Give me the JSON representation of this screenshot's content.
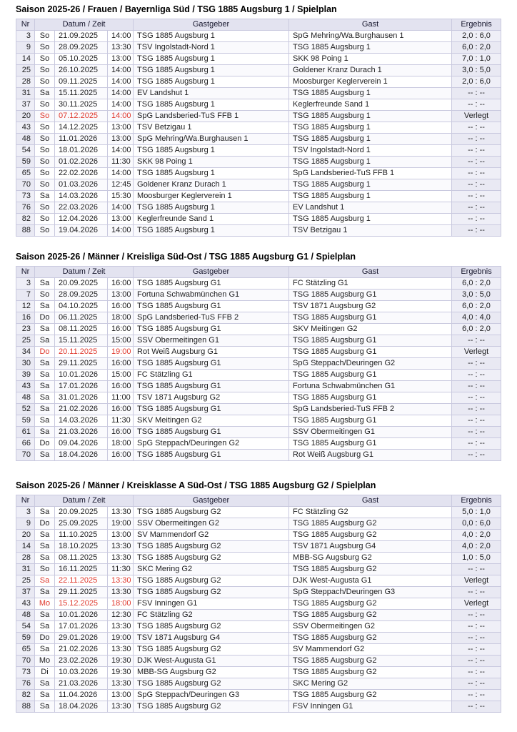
{
  "colors": {
    "header_bg": "#e3e3f0",
    "border": "#c9c9df",
    "accent_column_bg": "#efeff7",
    "text": "#1d1d1f",
    "postponed_red": "#e0392e"
  },
  "columns": {
    "nr": "Nr",
    "datum_zeit": "Datum / Zeit",
    "gastgeber": "Gastgeber",
    "gast": "Gast",
    "ergebnis": "Ergebnis"
  },
  "tables": [
    {
      "title": "Saison 2025-26 / Frauen / Bayernliga Süd / TSG 1885 Augsburg 1 / Spielplan",
      "rows": [
        {
          "nr": "3",
          "day": "So",
          "date": "21.09.2025",
          "time": "14:00",
          "home": "TSG 1885 Augsburg 1",
          "guest": "SpG Mehring/Wa.Burghausen 1",
          "result": "2,0 : 6,0",
          "highlight": false
        },
        {
          "nr": "9",
          "day": "So",
          "date": "28.09.2025",
          "time": "13:30",
          "home": "TSV Ingolstadt-Nord 1",
          "guest": "TSG 1885 Augsburg 1",
          "result": "6,0 : 2,0",
          "highlight": false
        },
        {
          "nr": "14",
          "day": "So",
          "date": "05.10.2025",
          "time": "13:00",
          "home": "TSG 1885 Augsburg 1",
          "guest": "SKK 98 Poing 1",
          "result": "7,0 : 1,0",
          "highlight": false
        },
        {
          "nr": "25",
          "day": "So",
          "date": "26.10.2025",
          "time": "14:00",
          "home": "TSG 1885 Augsburg 1",
          "guest": "Goldener Kranz Durach 1",
          "result": "3,0 : 5,0",
          "highlight": false
        },
        {
          "nr": "28",
          "day": "So",
          "date": "09.11.2025",
          "time": "14:00",
          "home": "TSG 1885 Augsburg 1",
          "guest": "Moosburger Keglerverein 1",
          "result": "2,0 : 6,0",
          "highlight": false
        },
        {
          "nr": "31",
          "day": "Sa",
          "date": "15.11.2025",
          "time": "14:00",
          "home": "EV Landshut 1",
          "guest": "TSG 1885 Augsburg 1",
          "result": "-- : --",
          "highlight": false
        },
        {
          "nr": "37",
          "day": "So",
          "date": "30.11.2025",
          "time": "14:00",
          "home": "TSG 1885 Augsburg 1",
          "guest": "Keglerfreunde Sand 1",
          "result": "-- : --",
          "highlight": false
        },
        {
          "nr": "20",
          "day": "So",
          "date": "07.12.2025",
          "time": "14:00",
          "home": "SpG Landsberied-TuS FFB 1",
          "guest": "TSG 1885 Augsburg 1",
          "result": "Verlegt",
          "highlight": true
        },
        {
          "nr": "43",
          "day": "So",
          "date": "14.12.2025",
          "time": "13:00",
          "home": "TSV Betzigau 1",
          "guest": "TSG 1885 Augsburg 1",
          "result": "-- : --",
          "highlight": false
        },
        {
          "nr": "48",
          "day": "So",
          "date": "11.01.2026",
          "time": "13:00",
          "home": "SpG Mehring/Wa.Burghausen 1",
          "guest": "TSG 1885 Augsburg 1",
          "result": "-- : --",
          "highlight": false
        },
        {
          "nr": "54",
          "day": "So",
          "date": "18.01.2026",
          "time": "14:00",
          "home": "TSG 1885 Augsburg 1",
          "guest": "TSV Ingolstadt-Nord 1",
          "result": "-- : --",
          "highlight": false
        },
        {
          "nr": "59",
          "day": "So",
          "date": "01.02.2026",
          "time": "11:30",
          "home": "SKK 98 Poing 1",
          "guest": "TSG 1885 Augsburg 1",
          "result": "-- : --",
          "highlight": false
        },
        {
          "nr": "65",
          "day": "So",
          "date": "22.02.2026",
          "time": "14:00",
          "home": "TSG 1885 Augsburg 1",
          "guest": "SpG Landsberied-TuS FFB 1",
          "result": "-- : --",
          "highlight": false
        },
        {
          "nr": "70",
          "day": "So",
          "date": "01.03.2026",
          "time": "12:45",
          "home": "Goldener Kranz Durach 1",
          "guest": "TSG 1885 Augsburg 1",
          "result": "-- : --",
          "highlight": false
        },
        {
          "nr": "73",
          "day": "Sa",
          "date": "14.03.2026",
          "time": "15:30",
          "home": "Moosburger Keglerverein 1",
          "guest": "TSG 1885 Augsburg 1",
          "result": "-- : --",
          "highlight": false
        },
        {
          "nr": "76",
          "day": "So",
          "date": "22.03.2026",
          "time": "14:00",
          "home": "TSG 1885 Augsburg 1",
          "guest": "EV Landshut 1",
          "result": "-- : --",
          "highlight": false
        },
        {
          "nr": "82",
          "day": "So",
          "date": "12.04.2026",
          "time": "13:00",
          "home": "Keglerfreunde Sand 1",
          "guest": "TSG 1885 Augsburg 1",
          "result": "-- : --",
          "highlight": false
        },
        {
          "nr": "88",
          "day": "So",
          "date": "19.04.2026",
          "time": "14:00",
          "home": "TSG 1885 Augsburg 1",
          "guest": "TSV Betzigau 1",
          "result": "-- : --",
          "highlight": false
        }
      ]
    },
    {
      "title": "Saison 2025-26 / Männer / Kreisliga Süd-Ost / TSG 1885 Augsburg G1 / Spielplan",
      "rows": [
        {
          "nr": "3",
          "day": "Sa",
          "date": "20.09.2025",
          "time": "16:00",
          "home": "TSG 1885 Augsburg G1",
          "guest": "FC Stätzling G1",
          "result": "6,0 : 2,0",
          "highlight": false
        },
        {
          "nr": "7",
          "day": "So",
          "date": "28.09.2025",
          "time": "13:00",
          "home": "Fortuna Schwabmünchen G1",
          "guest": "TSG 1885 Augsburg G1",
          "result": "3,0 : 5,0",
          "highlight": false
        },
        {
          "nr": "12",
          "day": "Sa",
          "date": "04.10.2025",
          "time": "16:00",
          "home": "TSG 1885 Augsburg G1",
          "guest": "TSV 1871 Augsburg G2",
          "result": "6,0 : 2,0",
          "highlight": false
        },
        {
          "nr": "16",
          "day": "Do",
          "date": "06.11.2025",
          "time": "18:00",
          "home": "SpG Landsberied-TuS FFB 2",
          "guest": "TSG 1885 Augsburg G1",
          "result": "4,0 : 4,0",
          "highlight": false
        },
        {
          "nr": "23",
          "day": "Sa",
          "date": "08.11.2025",
          "time": "16:00",
          "home": "TSG 1885 Augsburg G1",
          "guest": "SKV Meitingen G2",
          "result": "6,0 : 2,0",
          "highlight": false
        },
        {
          "nr": "25",
          "day": "Sa",
          "date": "15.11.2025",
          "time": "15:00",
          "home": "SSV Obermeitingen G1",
          "guest": "TSG 1885 Augsburg G1",
          "result": "-- : --",
          "highlight": false
        },
        {
          "nr": "34",
          "day": "Do",
          "date": "20.11.2025",
          "time": "19:00",
          "home": "Rot Weiß Augsburg G1",
          "guest": "TSG 1885 Augsburg G1",
          "result": "Verlegt",
          "highlight": true
        },
        {
          "nr": "30",
          "day": "Sa",
          "date": "29.11.2025",
          "time": "16:00",
          "home": "TSG 1885 Augsburg G1",
          "guest": "SpG Steppach/Deuringen G2",
          "result": "-- : --",
          "highlight": false
        },
        {
          "nr": "39",
          "day": "Sa",
          "date": "10.01.2026",
          "time": "15:00",
          "home": "FC Stätzling G1",
          "guest": "TSG 1885 Augsburg G1",
          "result": "-- : --",
          "highlight": false
        },
        {
          "nr": "43",
          "day": "Sa",
          "date": "17.01.2026",
          "time": "16:00",
          "home": "TSG 1885 Augsburg G1",
          "guest": "Fortuna Schwabmünchen G1",
          "result": "-- : --",
          "highlight": false
        },
        {
          "nr": "48",
          "day": "Sa",
          "date": "31.01.2026",
          "time": "11:00",
          "home": "TSV 1871 Augsburg G2",
          "guest": "TSG 1885 Augsburg G1",
          "result": "-- : --",
          "highlight": false
        },
        {
          "nr": "52",
          "day": "Sa",
          "date": "21.02.2026",
          "time": "16:00",
          "home": "TSG 1885 Augsburg G1",
          "guest": "SpG Landsberied-TuS FFB 2",
          "result": "-- : --",
          "highlight": false
        },
        {
          "nr": "59",
          "day": "Sa",
          "date": "14.03.2026",
          "time": "11:30",
          "home": "SKV Meitingen G2",
          "guest": "TSG 1885 Augsburg G1",
          "result": "-- : --",
          "highlight": false
        },
        {
          "nr": "61",
          "day": "Sa",
          "date": "21.03.2026",
          "time": "16:00",
          "home": "TSG 1885 Augsburg G1",
          "guest": "SSV Obermeitingen G1",
          "result": "-- : --",
          "highlight": false
        },
        {
          "nr": "66",
          "day": "Do",
          "date": "09.04.2026",
          "time": "18:00",
          "home": "SpG Steppach/Deuringen G2",
          "guest": "TSG 1885 Augsburg G1",
          "result": "-- : --",
          "highlight": false
        },
        {
          "nr": "70",
          "day": "Sa",
          "date": "18.04.2026",
          "time": "16:00",
          "home": "TSG 1885 Augsburg G1",
          "guest": "Rot Weiß Augsburg G1",
          "result": "-- : --",
          "highlight": false
        }
      ]
    },
    {
      "title": "Saison 2025-26 / Männer / Kreisklasse A Süd-Ost / TSG 1885 Augsburg G2 / Spielplan",
      "rows": [
        {
          "nr": "3",
          "day": "Sa",
          "date": "20.09.2025",
          "time": "13:30",
          "home": "TSG 1885 Augsburg G2",
          "guest": "FC Stätzling G2",
          "result": "5,0 : 1,0",
          "highlight": false
        },
        {
          "nr": "9",
          "day": "Do",
          "date": "25.09.2025",
          "time": "19:00",
          "home": "SSV Obermeitingen G2",
          "guest": "TSG 1885 Augsburg G2",
          "result": "0,0 : 6,0",
          "highlight": false
        },
        {
          "nr": "20",
          "day": "Sa",
          "date": "11.10.2025",
          "time": "13:00",
          "home": "SV Mammendorf G2",
          "guest": "TSG 1885 Augsburg G2",
          "result": "4,0 : 2,0",
          "highlight": false
        },
        {
          "nr": "14",
          "day": "Sa",
          "date": "18.10.2025",
          "time": "13:30",
          "home": "TSG 1885 Augsburg G2",
          "guest": "TSV 1871 Augsburg G4",
          "result": "4,0 : 2,0",
          "highlight": false
        },
        {
          "nr": "28",
          "day": "Sa",
          "date": "08.11.2025",
          "time": "13:30",
          "home": "TSG 1885 Augsburg G2",
          "guest": "MBB-SG Augsburg G2",
          "result": "1,0 : 5,0",
          "highlight": false
        },
        {
          "nr": "31",
          "day": "So",
          "date": "16.11.2025",
          "time": "11:30",
          "home": "SKC Mering G2",
          "guest": "TSG 1885 Augsburg G2",
          "result": "-- : --",
          "highlight": false
        },
        {
          "nr": "25",
          "day": "Sa",
          "date": "22.11.2025",
          "time": "13:30",
          "home": "TSG 1885 Augsburg G2",
          "guest": "DJK West-Augusta G1",
          "result": "Verlegt",
          "highlight": true
        },
        {
          "nr": "37",
          "day": "Sa",
          "date": "29.11.2025",
          "time": "13:30",
          "home": "TSG 1885 Augsburg G2",
          "guest": "SpG Steppach/Deuringen G3",
          "result": "-- : --",
          "highlight": false
        },
        {
          "nr": "43",
          "day": "Mo",
          "date": "15.12.2025",
          "time": "18:00",
          "home": "FSV Inningen G1",
          "guest": "TSG 1885 Augsburg G2",
          "result": "Verlegt",
          "highlight": true
        },
        {
          "nr": "48",
          "day": "Sa",
          "date": "10.01.2026",
          "time": "12:30",
          "home": "FC Stätzling G2",
          "guest": "TSG 1885 Augsburg G2",
          "result": "-- : --",
          "highlight": false
        },
        {
          "nr": "54",
          "day": "Sa",
          "date": "17.01.2026",
          "time": "13:30",
          "home": "TSG 1885 Augsburg G2",
          "guest": "SSV Obermeitingen G2",
          "result": "-- : --",
          "highlight": false
        },
        {
          "nr": "59",
          "day": "Do",
          "date": "29.01.2026",
          "time": "19:00",
          "home": "TSV 1871 Augsburg G4",
          "guest": "TSG 1885 Augsburg G2",
          "result": "-- : --",
          "highlight": false
        },
        {
          "nr": "65",
          "day": "Sa",
          "date": "21.02.2026",
          "time": "13:30",
          "home": "TSG 1885 Augsburg G2",
          "guest": "SV Mammendorf G2",
          "result": "-- : --",
          "highlight": false
        },
        {
          "nr": "70",
          "day": "Mo",
          "date": "23.02.2026",
          "time": "19:30",
          "home": "DJK West-Augusta G1",
          "guest": "TSG 1885 Augsburg G2",
          "result": "-- : --",
          "highlight": false
        },
        {
          "nr": "73",
          "day": "Di",
          "date": "10.03.2026",
          "time": "19:30",
          "home": "MBB-SG Augsburg G2",
          "guest": "TSG 1885 Augsburg G2",
          "result": "-- : --",
          "highlight": false
        },
        {
          "nr": "76",
          "day": "Sa",
          "date": "21.03.2026",
          "time": "13:30",
          "home": "TSG 1885 Augsburg G2",
          "guest": "SKC Mering G2",
          "result": "-- : --",
          "highlight": false
        },
        {
          "nr": "82",
          "day": "Sa",
          "date": "11.04.2026",
          "time": "13:00",
          "home": "SpG Steppach/Deuringen G3",
          "guest": "TSG 1885 Augsburg G2",
          "result": "-- : --",
          "highlight": false
        },
        {
          "nr": "88",
          "day": "Sa",
          "date": "18.04.2026",
          "time": "13:30",
          "home": "TSG 1885 Augsburg G2",
          "guest": "FSV Inningen G1",
          "result": "-- : --",
          "highlight": false
        }
      ]
    }
  ]
}
